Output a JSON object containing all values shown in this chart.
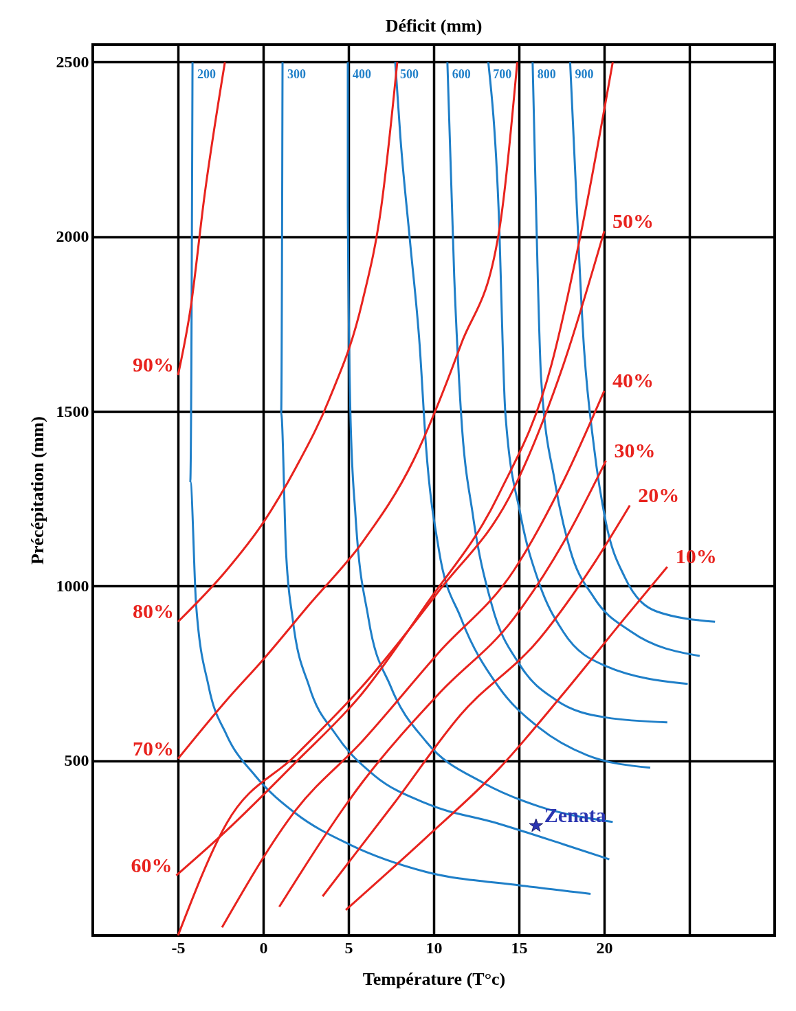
{
  "chart_data": {
    "type": "line",
    "title": "Déficit (mm)",
    "xlabel": "Température    (T°c)",
    "ylabel": "Précépitation    (mm)",
    "xlim": [
      -10,
      30
    ],
    "ylim": [
      0,
      2550
    ],
    "xticks": [
      -5,
      0,
      5,
      10,
      15,
      20,
      {
        "value": 25,
        "label": null
      }
    ],
    "yticks": [
      500,
      1000,
      1500,
      2000,
      2500
    ],
    "grid": true,
    "series": [
      {
        "name": "200",
        "color": "#1f7fc8",
        "x": [
          -4.15,
          -4.28,
          -3.94,
          -3.2,
          -2.16,
          -0.47,
          1.91,
          5.04,
          9.55,
          15.1,
          19.2
        ],
        "values": [
          2500,
          1300,
          947,
          712,
          575,
          457,
          349,
          261,
          182,
          143,
          119
        ]
      },
      {
        "name": "300",
        "color": "#1f7fc8",
        "x": [
          1.13,
          1.05,
          1.33,
          1.72,
          2.7,
          4.26,
          6.54,
          9.55,
          13.8,
          17.6,
          20.3
        ],
        "values": [
          2500,
          1496,
          1104,
          908,
          712,
          575,
          457,
          378,
          320,
          261,
          218
        ]
      },
      {
        "name": "400",
        "color": "#1f7fc8",
        "x": [
          4.96,
          4.96,
          5.11,
          5.41,
          6.17,
          7.48,
          9.55,
          12.9,
          16.2,
          20.5
        ],
        "values": [
          2500,
          2085,
          1496,
          1202,
          908,
          712,
          555,
          437,
          369,
          325
        ]
      },
      {
        "name": "500",
        "color": "#1f7fc8",
        "x": [
          7.74,
          8.05,
          8.61,
          9.17,
          9.55,
          10.3,
          11.6,
          13.8,
          16.2,
          19.0,
          22.7
        ],
        "values": [
          2500,
          2281,
          1986,
          1692,
          1398,
          1104,
          908,
          712,
          594,
          516,
          480
        ]
      },
      {
        "name": "600",
        "color": "#1f7fc8",
        "x": [
          10.8,
          11.2,
          11.6,
          12.3,
          13.4,
          15.1,
          17.2,
          20.1,
          23.7
        ],
        "values": [
          2500,
          1888,
          1496,
          1202,
          947,
          771,
          673,
          624,
          610
        ]
      },
      {
        "name": "700",
        "color": "#1f7fc8",
        "x": [
          13.2,
          13.8,
          14.2,
          15.1,
          16.2,
          17.6,
          20.1,
          24.9
        ],
        "values": [
          2500,
          2085,
          1496,
          1202,
          1006,
          869,
          771,
          720
        ]
      },
      {
        "name": "800",
        "color": "#1f7fc8",
        "x": [
          15.8,
          16.0,
          16.3,
          17.1,
          18.0,
          19.4,
          21.6,
          25.6
        ],
        "values": [
          2500,
          2085,
          1594,
          1300,
          1104,
          967,
          869,
          800
        ]
      },
      {
        "name": "900",
        "color": "#1f7fc8",
        "x": [
          18.0,
          18.3,
          18.8,
          19.4,
          20.1,
          21.2,
          23.1,
          26.5
        ],
        "values": [
          2500,
          2183,
          1692,
          1398,
          1182,
          1026,
          927,
          898
        ]
      },
      {
        "name": "90%",
        "color": "#e8231e",
        "x": [
          -5,
          -4.28,
          -3.43,
          -2.25
        ],
        "values": [
          1604,
          1790,
          2124,
          2500
        ]
      },
      {
        "name": "80%",
        "color": "#e8231e",
        "x": [
          -5,
          -2.16,
          0,
          1.91,
          3.87,
          5.79,
          6.92,
          7.86
        ],
        "values": [
          898,
          1045,
          1182,
          1339,
          1535,
          1810,
          2085,
          2500
        ]
      },
      {
        "name": "70%",
        "color": "#e8231e",
        "x": [
          -5,
          -2.16,
          0,
          2.7,
          5.79,
          8.8,
          11.6,
          13.8,
          14.9
        ],
        "values": [
          506,
          673,
          790,
          947,
          1124,
          1359,
          1692,
          2006,
          2500
        ]
      },
      {
        "name": "60%",
        "color": "#e8231e",
        "x": [
          -5.1,
          -2.16,
          1.91,
          5.79,
          9.55,
          13.8,
          16.9,
          18.7,
          20.5
        ],
        "values": [
          172,
          300,
          496,
          692,
          947,
          1261,
          1633,
          2026,
          2500
        ]
      },
      {
        "name": "50%",
        "color": "#e8231e",
        "x": [
          20,
          17.6,
          14.7,
          10.3,
          5.79,
          1.91,
          -2.16,
          -5
        ],
        "values": [
          2016,
          1633,
          1280,
          986,
          712,
          516,
          320,
          0
        ]
      },
      {
        "name": "40%",
        "color": "#e8231e",
        "x": [
          20,
          17.6,
          14.7,
          10.3,
          5.79,
          1.91,
          -2.42
        ],
        "values": [
          1559,
          1300,
          1045,
          810,
          555,
          359,
          23
        ]
      },
      {
        "name": "30%",
        "color": "#e8231e",
        "x": [
          20.1,
          17.6,
          14.7,
          10.3,
          5.79,
          0.94
        ],
        "values": [
          1359,
          1124,
          908,
          692,
          437,
          82
        ]
      },
      {
        "name": "20%",
        "color": "#e8231e",
        "x": [
          21.5,
          19.4,
          16.2,
          11.6,
          7.67,
          3.48
        ],
        "values": [
          1231,
          1065,
          849,
          633,
          378,
          112
        ]
      },
      {
        "name": "10%",
        "color": "#e8231e",
        "x": [
          23.7,
          21.2,
          17.6,
          13.8,
          9.55,
          4.84
        ],
        "values": [
          1055,
          908,
          692,
          476,
          280,
          73
        ]
      },
      {
        "name": "Zenata",
        "type": "scatter",
        "marker": "star",
        "color": "#2b35b0",
        "x": [
          16.0
        ],
        "values": [
          314
        ]
      }
    ]
  }
}
